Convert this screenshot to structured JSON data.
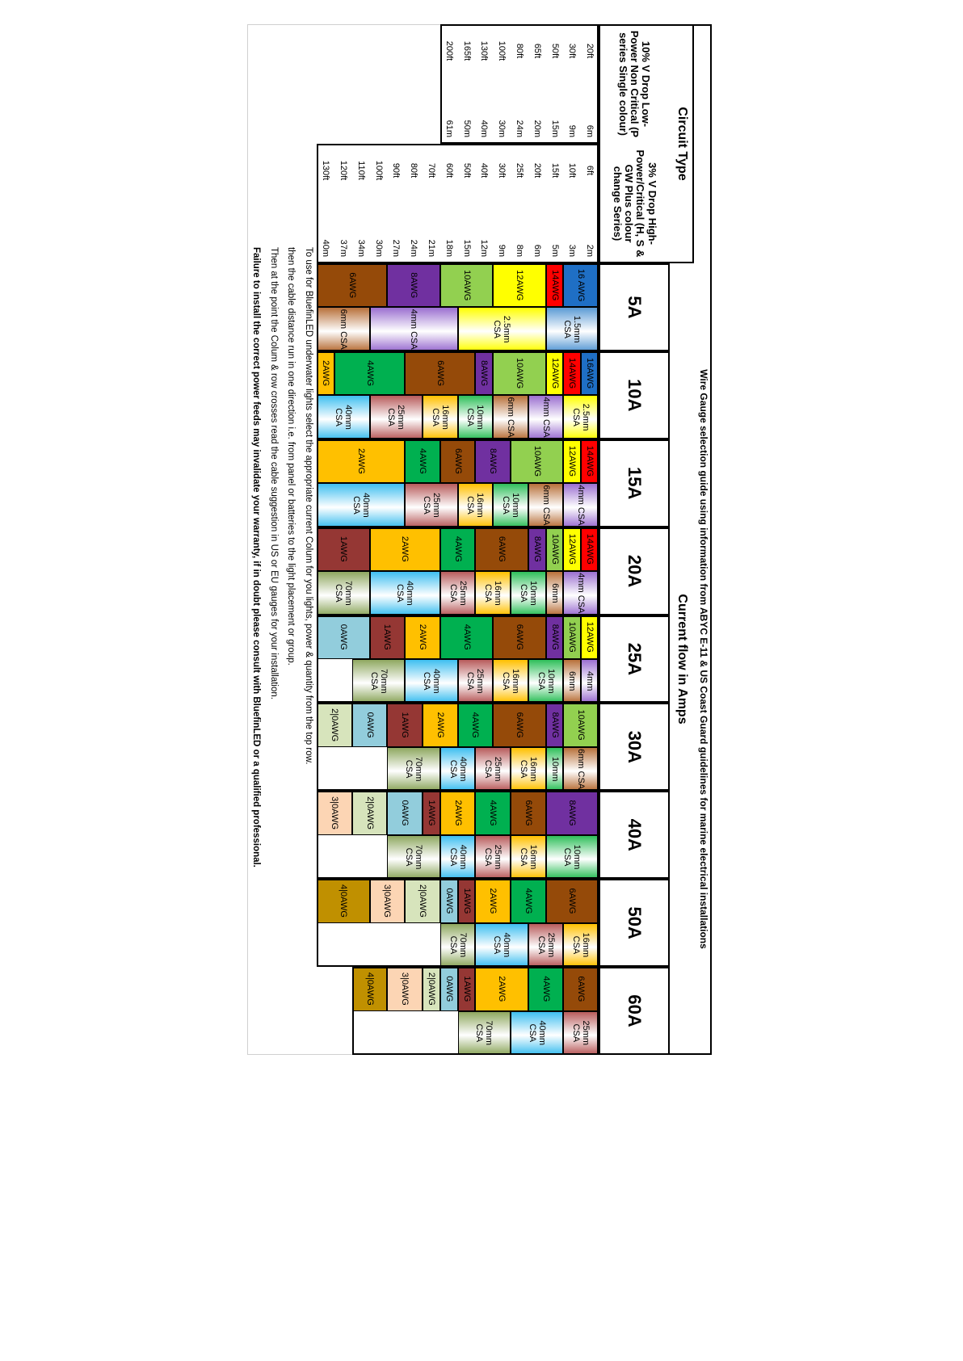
{
  "title": "Wire Gauge selection guide using information from ABYC E-11 & US Coast Guard guidelines for marine electrical installations",
  "circuit_type": "Circuit Type",
  "current_flow": "Current flow in Amps",
  "low_power": {
    "header": "10% V Drop Low-Power Non Critical (P series Single colour)",
    "rows": [
      [
        "20ft",
        "6m"
      ],
      [
        "30ft",
        "9m"
      ],
      [
        "50ft",
        "15m"
      ],
      [
        "65ft",
        "20m"
      ],
      [
        "80ft",
        "24m"
      ],
      [
        "100ft",
        "30m"
      ],
      [
        "130ft",
        "40m"
      ],
      [
        "165ft",
        "50m"
      ],
      [
        "200ft",
        "61m"
      ]
    ]
  },
  "high_power": {
    "header": "3% V Drop High-Power/Critical (H, S & GW Plus colour change Series)",
    "rows": [
      [
        "6ft",
        "2m"
      ],
      [
        "10ft",
        "3m"
      ],
      [
        "15ft",
        "5m"
      ],
      [
        "20ft",
        "6m"
      ],
      [
        "25ft",
        "8m"
      ],
      [
        "30ft",
        "9m"
      ],
      [
        "40ft",
        "12m"
      ],
      [
        "50ft",
        "15m"
      ],
      [
        "60ft",
        "18m"
      ],
      [
        "70ft",
        "21m"
      ],
      [
        "80ft",
        "24m"
      ],
      [
        "90ft",
        "27m"
      ],
      [
        "100ft",
        "30m"
      ],
      [
        "110ft",
        "34m"
      ],
      [
        "120ft",
        "37m"
      ],
      [
        "130ft",
        "40m"
      ]
    ]
  },
  "amps": [
    {
      "label": "5A",
      "awg": [
        {
          "text": "16 AWG",
          "color": "#1f6fc5"
        },
        null,
        {
          "text": "14AWG",
          "color": "#ff0000"
        },
        {
          "text": "12AWG",
          "color": "#ffff00"
        },
        null,
        null,
        {
          "text": "10AWG",
          "color": "#92d050"
        },
        null,
        null,
        {
          "text": "8AWG",
          "color": "#7030a0"
        },
        null,
        null,
        {
          "text": "6AWG",
          "color": "#954a09"
        },
        null,
        null,
        null
      ],
      "csa": [
        {
          "text": "1.5mm CSA",
          "color": "#5b9bd5"
        },
        null,
        null,
        {
          "text": "2.5mm CSA",
          "color": "#ffff00"
        },
        null,
        null,
        null,
        null,
        {
          "text": "4mm CSA",
          "color": "#9b6fd0"
        },
        null,
        null,
        null,
        null,
        {
          "text": "6mm CSA",
          "color": "#b8703a"
        },
        null,
        null
      ]
    },
    {
      "label": "10A",
      "awg": [
        {
          "text": "16AWG",
          "color": "#1f6fc5"
        },
        {
          "text": "14AWG",
          "color": "#ff0000"
        },
        {
          "text": "12AWG",
          "color": "#ffff00"
        },
        {
          "text": "10AWG",
          "color": "#92d050"
        },
        null,
        null,
        {
          "text": "8AWG",
          "color": "#7030a0"
        },
        {
          "text": "6AWG",
          "color": "#954a09"
        },
        null,
        null,
        null,
        {
          "text": "4AWG",
          "color": "#00b050"
        },
        null,
        null,
        null,
        {
          "text": "2AWG",
          "color": "#ffc000"
        }
      ],
      "csa": [
        {
          "text": "2.5mm CSA",
          "color": "#ffff00"
        },
        null,
        {
          "text": "4mm CSA",
          "color": "#9b6fd0"
        },
        null,
        {
          "text": "6mm CSA",
          "color": "#b8703a"
        },
        null,
        {
          "text": "10mm CSA",
          "color": "#2fbf5a"
        },
        null,
        {
          "text": "16mm CSA",
          "color": "#ffc000"
        },
        null,
        {
          "text": "25mm CSA",
          "color": "#b85c5c"
        },
        null,
        null,
        {
          "text": "40mm CSA",
          "color": "#3fbff0"
        },
        null,
        null
      ]
    },
    {
      "label": "15A",
      "awg": [
        {
          "text": "14AWG",
          "color": "#ff0000"
        },
        {
          "text": "12AWG",
          "color": "#ffff00"
        },
        {
          "text": "10AWG",
          "color": "#92d050"
        },
        null,
        null,
        {
          "text": "8AWG",
          "color": "#7030a0"
        },
        null,
        {
          "text": "6AWG",
          "color": "#954a09"
        },
        null,
        {
          "text": "4AWG",
          "color": "#00b050"
        },
        null,
        {
          "text": "2AWG",
          "color": "#ffc000"
        },
        null,
        null,
        null,
        null
      ],
      "csa": [
        {
          "text": "4mm CSA",
          "color": "#9b6fd0"
        },
        null,
        {
          "text": "6mm CSA",
          "color": "#b8703a"
        },
        null,
        {
          "text": "10mm CSA",
          "color": "#2fbf5a"
        },
        null,
        {
          "text": "16mm CSA",
          "color": "#ffc000"
        },
        null,
        {
          "text": "25mm CSA",
          "color": "#b85c5c"
        },
        null,
        null,
        {
          "text": "40mm CSA",
          "color": "#3fbff0"
        },
        null,
        null,
        null,
        null
      ]
    },
    {
      "label": "20A",
      "awg": [
        {
          "text": "14AWG",
          "color": "#ff0000"
        },
        {
          "text": "12AWG",
          "color": "#ffff00"
        },
        {
          "text": "10AWG",
          "color": "#92d050"
        },
        {
          "text": "8AWG",
          "color": "#7030a0"
        },
        {
          "text": "6AWG",
          "color": "#954a09"
        },
        null,
        null,
        {
          "text": "4AWG",
          "color": "#00b050"
        },
        null,
        {
          "text": "2AWG",
          "color": "#ffc000"
        },
        null,
        null,
        null,
        {
          "text": "1AWG",
          "color": "#953734"
        },
        null,
        null
      ],
      "csa": [
        {
          "text": "4mm CSA",
          "color": "#9b6fd0"
        },
        null,
        {
          "text": "6mm",
          "color": "#b8703a"
        },
        {
          "text": "10mm CSA",
          "color": "#2fbf5a"
        },
        null,
        {
          "text": "16mm CSA",
          "color": "#ffc000"
        },
        null,
        {
          "text": "25mm CSA",
          "color": "#b85c5c"
        },
        null,
        {
          "text": "40mm CSA",
          "color": "#3fbff0"
        },
        null,
        null,
        null,
        {
          "text": "70mm CSA",
          "color": "#8fa860"
        },
        null,
        null
      ]
    },
    {
      "label": "25A",
      "awg": [
        {
          "text": "12AWG",
          "color": "#ffff00"
        },
        {
          "text": "10AWG",
          "color": "#92d050"
        },
        {
          "text": "8AWG",
          "color": "#7030a0"
        },
        {
          "text": "6AWG",
          "color": "#954a09"
        },
        null,
        null,
        {
          "text": "4AWG",
          "color": "#00b050"
        },
        null,
        null,
        {
          "text": "2AWG",
          "color": "#ffc000"
        },
        null,
        {
          "text": "1AWG",
          "color": "#953734"
        },
        null,
        {
          "text": "0AWG",
          "color": "#92cddc"
        },
        null,
        null
      ],
      "csa": [
        {
          "text": "4mm",
          "color": "#9b6fd0"
        },
        {
          "text": "6mm",
          "color": "#b8703a"
        },
        {
          "text": "10mm CSA",
          "color": "#2fbf5a"
        },
        null,
        {
          "text": "16mm CSA",
          "color": "#ffc000"
        },
        null,
        {
          "text": "25mm CSA",
          "color": "#b85c5c"
        },
        null,
        {
          "text": "40mm CSA",
          "color": "#3fbff0"
        },
        null,
        null,
        {
          "text": "70mm CSA",
          "color": "#8fa860"
        },
        null,
        null
      ]
    },
    {
      "label": "30A",
      "awg": [
        {
          "text": "10AWG",
          "color": "#92d050"
        },
        null,
        {
          "text": "8AWG",
          "color": "#7030a0"
        },
        {
          "text": "6AWG",
          "color": "#954a09"
        },
        null,
        null,
        {
          "text": "4AWG",
          "color": "#00b050"
        },
        null,
        {
          "text": "2AWG",
          "color": "#ffc000"
        },
        null,
        {
          "text": "1AWG",
          "color": "#953734"
        },
        null,
        {
          "text": "0AWG",
          "color": "#92cddc"
        },
        null,
        {
          "text": "2|0AWG",
          "color": "#d7e4bc"
        },
        null
      ],
      "csa": [
        {
          "text": "6mm CSA",
          "color": "#b8703a"
        },
        null,
        {
          "text": "10mm",
          "color": "#2fbf5a"
        },
        {
          "text": "16mm CSA",
          "color": "#ffc000"
        },
        null,
        {
          "text": "25mm CSA",
          "color": "#b85c5c"
        },
        null,
        {
          "text": "40mm CSA",
          "color": "#3fbff0"
        },
        null,
        {
          "text": "70mm CSA",
          "color": "#8fa860"
        },
        null,
        null
      ]
    },
    {
      "label": "40A",
      "awg": [
        {
          "text": "8AWG",
          "color": "#7030a0"
        },
        null,
        null,
        {
          "text": "6AWG",
          "color": "#954a09"
        },
        null,
        {
          "text": "4AWG",
          "color": "#00b050"
        },
        null,
        {
          "text": "2AWG",
          "color": "#ffc000"
        },
        null,
        {
          "text": "1AWG",
          "color": "#953734"
        },
        {
          "text": "0AWG",
          "color": "#92cddc"
        },
        null,
        {
          "text": "2|0AWG",
          "color": "#d7e4bc"
        },
        null,
        {
          "text": "3|0AWG",
          "color": "#fcd5b4"
        },
        null
      ],
      "csa": [
        {
          "text": "10mm CSA",
          "color": "#2fbf5a"
        },
        null,
        null,
        {
          "text": "16mm CSA",
          "color": "#ffc000"
        },
        null,
        {
          "text": "25mm CSA",
          "color": "#b85c5c"
        },
        null,
        {
          "text": "40mm CSA",
          "color": "#3fbff0"
        },
        null,
        {
          "text": "70mm CSA",
          "color": "#8fa860"
        },
        null,
        null
      ]
    },
    {
      "label": "50A",
      "awg": [
        {
          "text": "6AWG",
          "color": "#954a09"
        },
        null,
        null,
        {
          "text": "4AWG",
          "color": "#00b050"
        },
        null,
        {
          "text": "2AWG",
          "color": "#ffc000"
        },
        null,
        {
          "text": "1AWG",
          "color": "#953734"
        },
        {
          "text": "0AWG",
          "color": "#92cddc"
        },
        {
          "text": "2|0AWG",
          "color": "#d7e4bc"
        },
        null,
        {
          "text": "3|0AWG",
          "color": "#fcd5b4"
        },
        null,
        {
          "text": "4|0AWG",
          "color": "#c09000"
        },
        null,
        null
      ],
      "csa": [
        {
          "text": "16mm CSA",
          "color": "#ffc000"
        },
        null,
        {
          "text": "25mm CSA",
          "color": "#b85c5c"
        },
        null,
        {
          "text": "40mm CSA",
          "color": "#3fbff0"
        },
        null,
        null,
        {
          "text": "70mm CSA",
          "color": "#8fa860"
        },
        null
      ]
    },
    {
      "label": "60A",
      "awg": [
        {
          "text": "6AWG",
          "color": "#954a09"
        },
        null,
        {
          "text": "4AWG",
          "color": "#00b050"
        },
        null,
        {
          "text": "2AWG",
          "color": "#ffc000"
        },
        null,
        null,
        {
          "text": "1AWG",
          "color": "#953734"
        },
        {
          "text": "0AWG",
          "color": "#92cddc"
        },
        {
          "text": "2|0AWG",
          "color": "#d7e4bc"
        },
        {
          "text": "3|0AWG",
          "color": "#fcd5b4"
        },
        null,
        {
          "text": "4|0AWG",
          "color": "#c09000"
        },
        null
      ],
      "csa": [
        {
          "text": "25mm CSA",
          "color": "#b85c5c"
        },
        null,
        {
          "text": "40mm CSA",
          "color": "#3fbff0"
        },
        null,
        null,
        {
          "text": "70mm CSA",
          "color": "#8fa860"
        },
        null,
        null
      ]
    }
  ],
  "notes": [
    {
      "text": "To use for BluefinLED underwater lights select the appropriate current Colum for you lights, power &  quantity from the top row.",
      "bold": false
    },
    {
      "text": "then the cable distance run in one direction i.e. from panel or batteries to the light placement or group.",
      "bold": false
    },
    {
      "text": "Then at the point the Colum & row crosses read the cable  suggestion in US or EU gauges for your installation.",
      "bold": false
    },
    {
      "text": "Failure to install the correct power feeds may invalidate your warranty, if in doubt please consult with BluefinLED or a qualified professional.",
      "bold": true
    }
  ]
}
